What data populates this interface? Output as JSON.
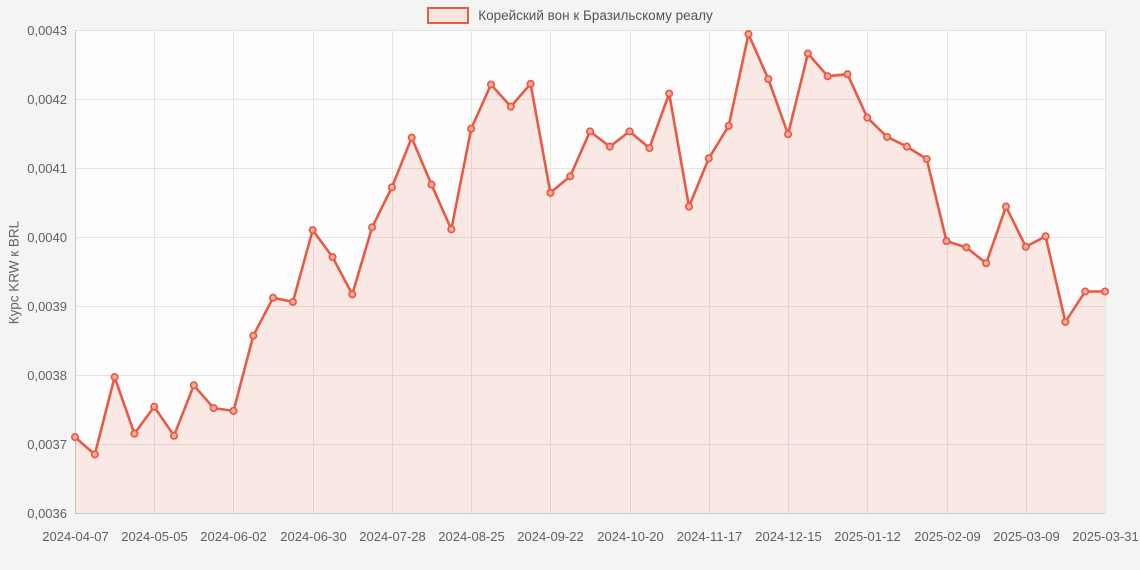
{
  "legend": {
    "label": "Корейский вон к Бразильскому реалу"
  },
  "y_axis": {
    "title": "Курс KRW к BRL"
  },
  "colors": {
    "line": "#e75b45",
    "area_fill": "rgba(231,91,69,0.13)",
    "marker_fill": "#f6ab9c",
    "grid": "#e4e4e4",
    "axis": "#c9c9c9",
    "tick_text": "#606060",
    "plot_background": "#fdfdfd",
    "legend_swatch_fill": "#fbe5e0"
  },
  "chart_data": {
    "type": "area",
    "series_name": "Корейский вон к Бразильскому реалу",
    "ylabel": "Курс KRW к BRL",
    "xlabel": "",
    "grid": true,
    "legend_position": "top-center",
    "ylim": [
      0.0036,
      0.0043
    ],
    "y_ticks": [
      0.0036,
      0.0037,
      0.0038,
      0.0039,
      0.004,
      0.0041,
      0.0042,
      0.0043
    ],
    "y_tick_labels": [
      "0,0036",
      "0,0037",
      "0,0038",
      "0,0039",
      "0,0040",
      "0,0041",
      "0,0042",
      "0,0043"
    ],
    "x_tick_indices": [
      0,
      4,
      8,
      12,
      16,
      20,
      24,
      28,
      32,
      36,
      40,
      44,
      48,
      52
    ],
    "x_tick_labels": [
      "2024-04-07",
      "2024-05-05",
      "2024-06-02",
      "2024-06-30",
      "2024-07-28",
      "2024-08-25",
      "2024-09-22",
      "2024-10-20",
      "2024-11-17",
      "2024-12-15",
      "2025-01-12",
      "2025-02-09",
      "2025-03-09",
      "2025-03-31"
    ],
    "x": [
      "2024-04-07",
      "2024-04-14",
      "2024-04-21",
      "2024-04-28",
      "2024-05-05",
      "2024-05-12",
      "2024-05-19",
      "2024-05-26",
      "2024-06-02",
      "2024-06-09",
      "2024-06-16",
      "2024-06-23",
      "2024-06-30",
      "2024-07-07",
      "2024-07-14",
      "2024-07-21",
      "2024-07-28",
      "2024-08-04",
      "2024-08-11",
      "2024-08-18",
      "2024-08-25",
      "2024-09-01",
      "2024-09-08",
      "2024-09-15",
      "2024-09-22",
      "2024-09-29",
      "2024-10-06",
      "2024-10-13",
      "2024-10-20",
      "2024-10-27",
      "2024-11-03",
      "2024-11-10",
      "2024-11-17",
      "2024-11-24",
      "2024-12-01",
      "2024-12-08",
      "2024-12-15",
      "2024-12-22",
      "2024-12-29",
      "2025-01-05",
      "2025-01-12",
      "2025-01-19",
      "2025-01-26",
      "2025-02-02",
      "2025-02-09",
      "2025-02-16",
      "2025-02-23",
      "2025-03-02",
      "2025-03-09",
      "2025-03-16",
      "2025-03-23",
      "2025-03-30",
      "2025-03-31"
    ],
    "values": [
      0.00371,
      0.003685,
      0.003797,
      0.003715,
      0.003754,
      0.003712,
      0.003785,
      0.003752,
      0.003748,
      0.003857,
      0.003912,
      0.003906,
      0.00401,
      0.003971,
      0.003917,
      0.004014,
      0.004072,
      0.004144,
      0.004076,
      0.004011,
      0.004157,
      0.004221,
      0.004189,
      0.004222,
      0.004064,
      0.004088,
      0.004153,
      0.004131,
      0.004153,
      0.004129,
      0.004208,
      0.004044,
      0.004114,
      0.004161,
      0.004294,
      0.004229,
      0.004149,
      0.004266,
      0.004233,
      0.004236,
      0.004173,
      0.004145,
      0.004131,
      0.004113,
      0.003994,
      0.003985,
      0.003962,
      0.004044,
      0.003986,
      0.004001,
      0.003877,
      0.003921,
      0.003921
    ]
  }
}
